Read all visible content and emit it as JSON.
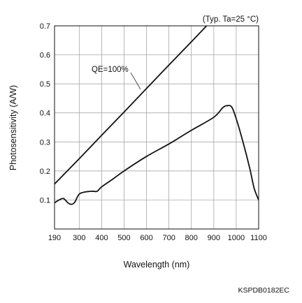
{
  "chart_data": {
    "type": "line",
    "condition_note": "(Typ. Ta=25 °C)",
    "xlabel": "Wavelength (nm)",
    "ylabel": "Photosensitivity (A/W)",
    "xlim": [
      190,
      1100
    ],
    "ylim": [
      0,
      0.7
    ],
    "x_ticks": [
      "190",
      "300",
      "400",
      "500",
      "600",
      "700",
      "800",
      "900",
      "1000",
      "1100"
    ],
    "y_ticks": [
      "0.1",
      "0.2",
      "0.3",
      "0.4",
      "0.5",
      "0.6",
      "0.7"
    ],
    "x_grid": [
      300,
      400,
      500,
      600,
      700,
      800,
      900,
      1000
    ],
    "y_grid": [
      0.1,
      0.2,
      0.3,
      0.4,
      0.5,
      0.6
    ],
    "grid": true,
    "series": [
      {
        "name": "QE=100%",
        "x": [
          190,
          300,
          400,
          500,
          600,
          700,
          800,
          900,
          915
        ],
        "y": [
          0.155,
          0.242,
          0.323,
          0.403,
          0.484,
          0.565,
          0.645,
          0.726,
          0.738
        ]
      },
      {
        "name": "",
        "x": [
          190,
          210,
          230,
          250,
          265,
          280,
          300,
          330,
          360,
          380,
          400,
          450,
          500,
          600,
          700,
          800,
          900,
          940,
          960,
          980,
          1000,
          1030,
          1060,
          1080,
          1100
        ],
        "y": [
          0.09,
          0.1,
          0.105,
          0.09,
          0.085,
          0.092,
          0.12,
          0.128,
          0.13,
          0.13,
          0.145,
          0.172,
          0.2,
          0.25,
          0.293,
          0.34,
          0.385,
          0.418,
          0.425,
          0.42,
          0.38,
          0.3,
          0.21,
          0.14,
          0.1
        ]
      }
    ]
  },
  "footer": {
    "code": "KSPDB0182EC"
  }
}
